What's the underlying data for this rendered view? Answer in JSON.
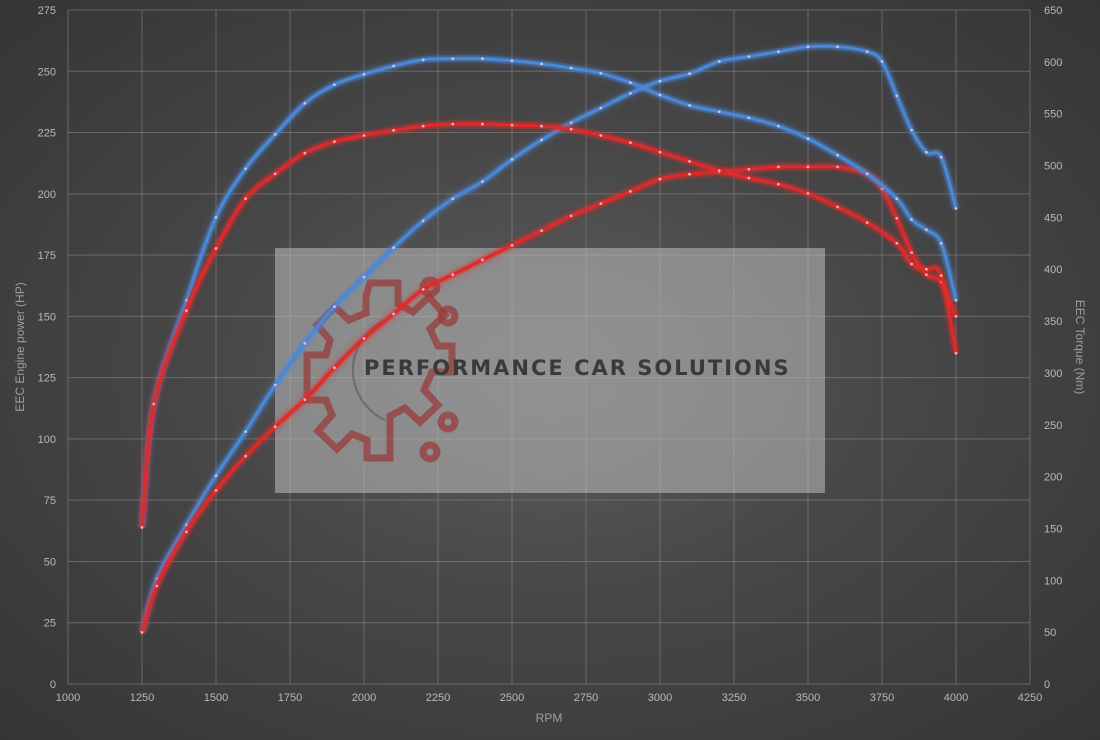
{
  "chart_data": {
    "type": "line",
    "xlabel": "RPM",
    "ylabel_left": "EEC Engine power (HP)",
    "ylabel_right": "EEC Torque (Nm)",
    "xlim": [
      1000,
      4250
    ],
    "ylim_left": [
      0,
      275
    ],
    "ylim_right": [
      0,
      650
    ],
    "x_ticks": [
      1000,
      1250,
      1500,
      1750,
      2000,
      2250,
      2500,
      2750,
      3000,
      3250,
      3500,
      3750,
      4000,
      4250
    ],
    "y_left_ticks": [
      0,
      25,
      50,
      75,
      100,
      125,
      150,
      175,
      200,
      225,
      250,
      275
    ],
    "y_right_ticks": [
      0,
      50,
      100,
      150,
      200,
      250,
      300,
      350,
      400,
      450,
      500,
      550,
      600,
      650
    ],
    "grid": true,
    "legend": "none",
    "series": [
      {
        "axis": "left",
        "color": "#4a88d8",
        "x": [
          1250,
          1300,
          1400,
          1500,
          1600,
          1700,
          1800,
          1900,
          2000,
          2100,
          2200,
          2300,
          2400,
          2500,
          2600,
          2700,
          2800,
          2900,
          3000,
          3100,
          3200,
          3300,
          3400,
          3500,
          3600,
          3700,
          3750,
          3800,
          3850,
          3900,
          3950,
          4000
        ],
        "y": [
          21,
          43,
          65,
          85,
          103,
          122,
          139,
          154,
          166,
          178,
          189,
          198,
          205,
          214,
          222,
          229,
          235,
          241,
          246,
          249,
          254,
          256,
          258,
          260,
          260,
          258,
          254,
          240,
          226,
          217,
          215,
          194
        ]
      },
      {
        "axis": "left",
        "color": "#e02a2a",
        "x": [
          1250,
          1300,
          1400,
          1500,
          1600,
          1700,
          1800,
          1900,
          2000,
          2100,
          2200,
          2300,
          2400,
          2500,
          2600,
          2700,
          2800,
          2900,
          3000,
          3100,
          3200,
          3300,
          3400,
          3500,
          3600,
          3700,
          3750,
          3800,
          3850,
          3900,
          3950,
          4000
        ],
        "y": [
          21,
          40,
          62,
          79,
          93,
          105,
          116,
          129,
          141,
          151,
          161,
          167,
          173,
          179,
          185,
          191,
          196,
          201,
          206,
          208,
          209,
          210,
          211,
          211,
          211,
          208,
          202,
          190,
          176,
          167,
          164,
          150
        ]
      },
      {
        "axis": "right",
        "color": "#4a88d8",
        "x": [
          1250,
          1290,
          1400,
          1500,
          1600,
          1700,
          1800,
          1900,
          2000,
          2100,
          2200,
          2300,
          2400,
          2500,
          2600,
          2700,
          2800,
          2900,
          3000,
          3100,
          3200,
          3300,
          3400,
          3500,
          3600,
          3700,
          3800,
          3850,
          3900,
          3950,
          4000
        ],
        "y": [
          151,
          270,
          370,
          450,
          497,
          530,
          560,
          578,
          588,
          596,
          602,
          603,
          603,
          601,
          598,
          594,
          589,
          580,
          568,
          558,
          552,
          546,
          538,
          526,
          510,
          492,
          468,
          448,
          438,
          425,
          370
        ]
      },
      {
        "axis": "right",
        "color": "#e02a2a",
        "x": [
          1250,
          1290,
          1400,
          1500,
          1600,
          1700,
          1800,
          1900,
          2000,
          2100,
          2200,
          2300,
          2400,
          2500,
          2600,
          2700,
          2800,
          2900,
          3000,
          3100,
          3200,
          3300,
          3400,
          3500,
          3600,
          3700,
          3800,
          3850,
          3900,
          3950,
          4000
        ],
        "y": [
          151,
          270,
          360,
          420,
          468,
          492,
          512,
          523,
          529,
          534,
          538,
          540,
          540,
          539,
          538,
          535,
          529,
          522,
          513,
          504,
          495,
          488,
          482,
          473,
          460,
          445,
          425,
          405,
          400,
          394,
          319
        ]
      }
    ]
  },
  "watermark": {
    "text": "PERFORMANCE CAR SOLUTIONS",
    "gear_color": "#9a3b3b"
  }
}
